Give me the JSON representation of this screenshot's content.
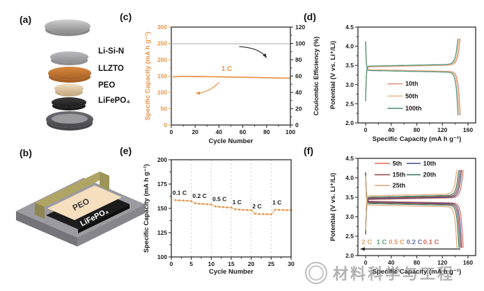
{
  "watermark": {
    "text": "材料科学与工程"
  },
  "panel_a": {
    "label": "(a)",
    "layers": [
      {
        "name": "cell-cap",
        "label": "",
        "color": "#cfcfcf",
        "side": "#8a8a8a"
      },
      {
        "name": "li-si-n",
        "label": "Li-Si-N",
        "color": "#bcbcc0",
        "side": "#8f8f93"
      },
      {
        "name": "llzto",
        "label": "LLZTO",
        "color": "#d8893e",
        "side": "#a55f25"
      },
      {
        "name": "peo",
        "label": "PEO",
        "color": "#f3e2c8",
        "side": "#c9ad85"
      },
      {
        "name": "lifepo4",
        "label": "LiFePO₄",
        "color": "#3b3b3b",
        "side": "#1c1c1c"
      },
      {
        "name": "cell-case",
        "label": "",
        "color": "#6e6e74",
        "side": "#45454b"
      }
    ]
  },
  "panel_b": {
    "label": "(b)",
    "peo_label": "PEO",
    "lfp_label": "LiFePO₄",
    "colors": {
      "substrate": "#9b9ba1",
      "substrate_front": "#74747a",
      "substrate_side": "#86868c",
      "peo": "#f5dfbe",
      "lfp": "#1c1c1c",
      "clamp": "#b0a565",
      "clamp_dark": "#8f8550",
      "clamp_mid": "#9d9458"
    }
  },
  "chart_data": [
    {
      "id": "c",
      "type": "cycling",
      "panel_label": "(c)",
      "xlabel": "Cycle Number",
      "ylabel_left": "Specific Capacity (mA h g⁻¹)",
      "ylabel_right": "Coulombic Efficiency (%)",
      "xlim": [
        0,
        100
      ],
      "xticks": [
        0,
        20,
        40,
        60,
        80,
        100
      ],
      "xminor": 10,
      "ylim_left": [
        0,
        300
      ],
      "yticks_left": [
        0,
        50,
        100,
        150,
        200,
        250,
        300
      ],
      "yminor_left": 25,
      "ylim_right": [
        0,
        120
      ],
      "yticks_right": [
        0,
        20,
        40,
        60,
        80,
        100,
        120
      ],
      "yminor_right": 10,
      "axis_color_left": "#e8954a",
      "series": [
        {
          "name": "discharge-capacity",
          "axis": "left",
          "color": "#e8954a",
          "x": [
            1,
            3,
            5,
            8,
            10,
            15,
            20,
            25,
            30,
            35,
            40,
            45,
            50,
            55,
            60,
            65,
            70,
            75,
            80,
            85,
            90,
            95,
            100
          ],
          "y": [
            147.2,
            147.8,
            148.2,
            148.8,
            149,
            148.8,
            148.6,
            148.4,
            148.1,
            147.9,
            147.6,
            147.3,
            147,
            146.7,
            146.4,
            146.1,
            145.7,
            145.3,
            144.9,
            144.5,
            144.1,
            143.8,
            143.4
          ]
        },
        {
          "name": "coulombic-efficiency",
          "axis": "right",
          "color": "#c6c6c6",
          "x": [
            1,
            100
          ],
          "y": [
            99.6,
            99.6
          ]
        }
      ],
      "annotations": [
        {
          "type": "text",
          "text": "1 C",
          "x": 42,
          "y": 166,
          "color": "#e8954a",
          "fs": 10
        },
        {
          "type": "arrow",
          "from": [
            40,
            131
          ],
          "ctrl": [
            32,
            99
          ],
          "to": [
            20.5,
            97
          ],
          "color": "#e8954a"
        },
        {
          "type": "arrow",
          "from": [
            57,
            240
          ],
          "ctrl": [
            74,
            237
          ],
          "to": [
            80,
            206
          ],
          "color": "#2b2b2b"
        }
      ]
    },
    {
      "id": "d",
      "type": "cd",
      "panel_label": "(d)",
      "xlabel": "Specific Capacity (mA h g⁻¹)",
      "ylabel": "Potential (V vs. Li⁺/Li)",
      "xlim": [
        -12,
        172
      ],
      "xticks": [
        0,
        40,
        80,
        120,
        160
      ],
      "xminor": 20,
      "ylim": [
        2.0,
        4.5
      ],
      "yticks": [
        "2.0",
        "2.5",
        "3.0",
        "3.5",
        "4.0",
        "4.5"
      ],
      "yminor": 0.25,
      "vmax": 4.2,
      "vmin": 2.2,
      "series": [
        {
          "name": "10th",
          "color": "#e8928a",
          "capacity": 148,
          "charge_plateau": 3.46,
          "discharge_plateau": 3.39
        },
        {
          "name": "50th",
          "color": "#eabd8d",
          "capacity": 146.5,
          "charge_plateau": 3.47,
          "discharge_plateau": 3.38
        },
        {
          "name": "100th",
          "color": "#4f9678",
          "capacity": 144.5,
          "charge_plateau": 3.48,
          "discharge_plateau": 3.37
        }
      ]
    },
    {
      "id": "e",
      "type": "rate",
      "panel_label": "(e)",
      "xlabel": "Cycle Number",
      "ylabel": "Specific Capacity (mA h g⁻¹)",
      "xlim": [
        0,
        30
      ],
      "xticks": [
        0,
        5,
        10,
        15,
        20,
        25,
        30
      ],
      "xminor": 2.5,
      "ylim": [
        100,
        200
      ],
      "yticks": [
        100,
        125,
        150,
        175,
        200
      ],
      "yminor": 12.5,
      "grid_x": [
        5,
        10,
        15,
        20,
        25
      ],
      "color": "#e8954a",
      "segments": [
        {
          "rate": "0.1 C",
          "cycles": [
            1,
            2,
            3,
            4,
            5
          ],
          "values": [
            158.5,
            158.2,
            158,
            157.8,
            157.5
          ]
        },
        {
          "rate": "0.2 C",
          "cycles": [
            6,
            7,
            8,
            9,
            10
          ],
          "values": [
            155.2,
            154.8,
            154.5,
            154.2,
            154
          ]
        },
        {
          "rate": "0.5 C",
          "cycles": [
            11,
            12,
            13,
            14,
            15
          ],
          "values": [
            152,
            151.6,
            151.3,
            151,
            150.8
          ]
        },
        {
          "rate": "1 C",
          "cycles": [
            16,
            17,
            18,
            19,
            20
          ],
          "values": [
            149,
            148.7,
            148.5,
            148.3,
            148.2
          ]
        },
        {
          "rate": "2 C",
          "cycles": [
            21,
            22,
            23,
            24,
            25
          ],
          "values": [
            144.5,
            144.2,
            144,
            144,
            143.9
          ]
        },
        {
          "rate": "1 C",
          "cycles": [
            26,
            27,
            28,
            29,
            30
          ],
          "values": [
            148.6,
            148.5,
            148.4,
            148.2,
            148
          ]
        }
      ]
    },
    {
      "id": "f",
      "type": "cd",
      "panel_label": "(f)",
      "xlabel": "Specific Capacity (mA h g⁻¹)",
      "ylabel": "Potential (V vs. Li⁺/Li)",
      "xlim": [
        -12,
        172
      ],
      "xticks": [
        0,
        40,
        80,
        120,
        160
      ],
      "xminor": 20,
      "ylim": [
        2.0,
        4.5
      ],
      "yticks": [
        "2.0",
        "2.5",
        "3.0",
        "3.5",
        "4.0",
        "4.5"
      ],
      "yminor": 0.25,
      "vmax": 4.2,
      "vmin": 2.2,
      "series": [
        {
          "name": "5th",
          "color": "#dd6f63",
          "capacity": 152.5,
          "charge_plateau": 3.44,
          "discharge_plateau": 3.4
        },
        {
          "name": "10th",
          "color": "#49568e",
          "capacity": 150,
          "charge_plateau": 3.455,
          "discharge_plateau": 3.385
        },
        {
          "name": "15th",
          "color": "#9a4b44",
          "capacity": 148,
          "charge_plateau": 3.475,
          "discharge_plateau": 3.365
        },
        {
          "name": "20th",
          "color": "#3f7d63",
          "capacity": 146,
          "charge_plateau": 3.5,
          "discharge_plateau": 3.34
        },
        {
          "name": "25th",
          "color": "#dfae7d",
          "capacity": 143,
          "charge_plateau": 3.535,
          "discharge_plateau": 3.3
        }
      ],
      "rate_labels": [
        {
          "text": "2 C",
          "color": "#d9a76a",
          "x": -6
        },
        {
          "text": "1 C",
          "color": "#5f9a7c",
          "x": 17
        },
        {
          "text": "0.5 C",
          "color": "#e8995a",
          "x": 36
        },
        {
          "text": "0.2 C",
          "color": "#6a6fa8",
          "x": 64
        },
        {
          "text": "0.1 C",
          "color": "#d95f52",
          "x": 90
        }
      ],
      "rate_label_y": 2.35,
      "annotations": [
        {
          "type": "arrow",
          "from": [
            148,
            2.17
          ],
          "ctrl": [
            70,
            2.17
          ],
          "to": [
            -8,
            2.17
          ],
          "color": "#1a1a1a"
        }
      ]
    }
  ]
}
